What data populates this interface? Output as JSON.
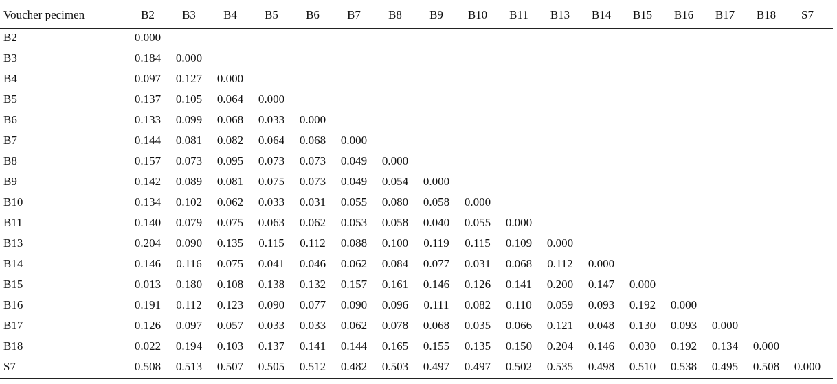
{
  "table": {
    "header": [
      "Voucher pecimen",
      "B2",
      "B3",
      "B4",
      "B5",
      "B6",
      "B7",
      "B8",
      "B9",
      "B10",
      "B11",
      "B13",
      "B14",
      "B15",
      "B16",
      "B17",
      "B18",
      "S7"
    ],
    "rows": [
      {
        "label": "B2",
        "values": [
          "0.000"
        ]
      },
      {
        "label": "B3",
        "values": [
          "0.184",
          "0.000"
        ]
      },
      {
        "label": "B4",
        "values": [
          "0.097",
          "0.127",
          "0.000"
        ]
      },
      {
        "label": "B5",
        "values": [
          "0.137",
          "0.105",
          "0.064",
          "0.000"
        ]
      },
      {
        "label": "B6",
        "values": [
          "0.133",
          "0.099",
          "0.068",
          "0.033",
          "0.000"
        ]
      },
      {
        "label": "B7",
        "values": [
          "0.144",
          "0.081",
          "0.082",
          "0.064",
          "0.068",
          "0.000"
        ]
      },
      {
        "label": "B8",
        "values": [
          "0.157",
          "0.073",
          "0.095",
          "0.073",
          "0.073",
          "0.049",
          "0.000"
        ]
      },
      {
        "label": "B9",
        "values": [
          "0.142",
          "0.089",
          "0.081",
          "0.075",
          "0.073",
          "0.049",
          "0.054",
          "0.000"
        ]
      },
      {
        "label": "B10",
        "values": [
          "0.134",
          "0.102",
          "0.062",
          "0.033",
          "0.031",
          "0.055",
          "0.080",
          "0.058",
          "0.000"
        ]
      },
      {
        "label": "B11",
        "values": [
          "0.140",
          "0.079",
          "0.075",
          "0.063",
          "0.062",
          "0.053",
          "0.058",
          "0.040",
          "0.055",
          "0.000"
        ]
      },
      {
        "label": "B13",
        "values": [
          "0.204",
          "0.090",
          "0.135",
          "0.115",
          "0.112",
          "0.088",
          "0.100",
          "0.119",
          "0.115",
          "0.109",
          "0.000"
        ]
      },
      {
        "label": "B14",
        "values": [
          "0.146",
          "0.116",
          "0.075",
          "0.041",
          "0.046",
          "0.062",
          "0.084",
          "0.077",
          "0.031",
          "0.068",
          "0.112",
          "0.000"
        ]
      },
      {
        "label": "B15",
        "values": [
          "0.013",
          "0.180",
          "0.108",
          "0.138",
          "0.132",
          "0.157",
          "0.161",
          "0.146",
          "0.126",
          "0.141",
          "0.200",
          "0.147",
          "0.000"
        ]
      },
      {
        "label": "B16",
        "values": [
          "0.191",
          "0.112",
          "0.123",
          "0.090",
          "0.077",
          "0.090",
          "0.096",
          "0.111",
          "0.082",
          "0.110",
          "0.059",
          "0.093",
          "0.192",
          "0.000"
        ]
      },
      {
        "label": "B17",
        "values": [
          "0.126",
          "0.097",
          "0.057",
          "0.033",
          "0.033",
          "0.062",
          "0.078",
          "0.068",
          "0.035",
          "0.066",
          "0.121",
          "0.048",
          "0.130",
          "0.093",
          "0.000"
        ]
      },
      {
        "label": "B18",
        "values": [
          "0.022",
          "0.194",
          "0.103",
          "0.137",
          "0.141",
          "0.144",
          "0.165",
          "0.155",
          "0.135",
          "0.150",
          "0.204",
          "0.146",
          "0.030",
          "0.192",
          "0.134",
          "0.000"
        ]
      },
      {
        "label": "S7",
        "values": [
          "0.508",
          "0.513",
          "0.507",
          "0.505",
          "0.512",
          "0.482",
          "0.503",
          "0.497",
          "0.497",
          "0.502",
          "0.535",
          "0.498",
          "0.510",
          "0.538",
          "0.495",
          "0.508",
          "0.000"
        ]
      }
    ]
  }
}
